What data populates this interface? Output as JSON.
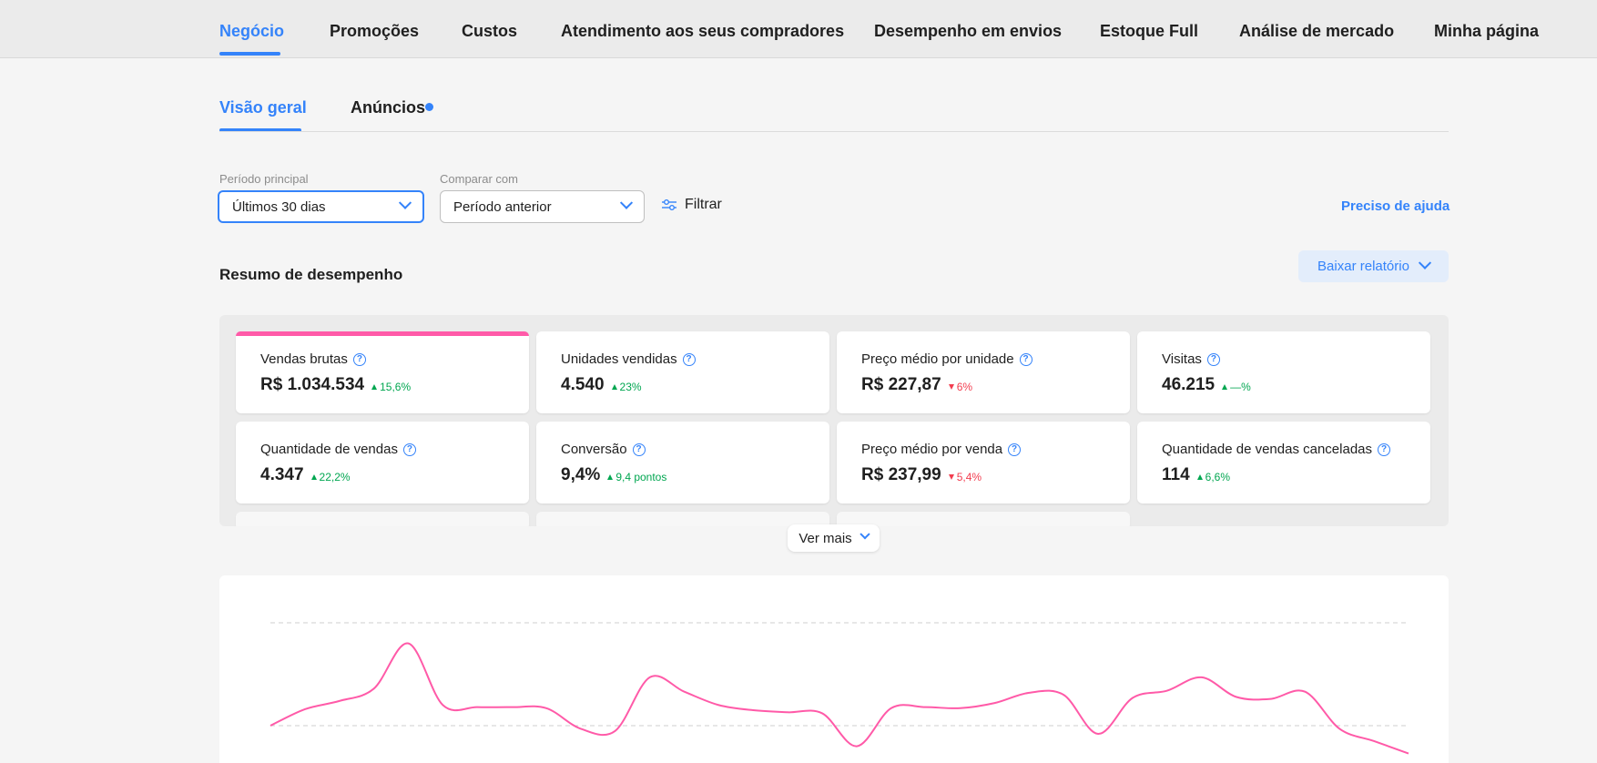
{
  "top_nav": {
    "tabs": [
      "Negócio",
      "Promoções",
      "Custos",
      "Atendimento aos seus compradores",
      "Desempenho em envios",
      "Estoque Full",
      "Análise de mercado",
      "Minha página"
    ],
    "active_index": 0
  },
  "sub_tabs": {
    "tabs": [
      "Visão geral",
      "Anúncios"
    ],
    "active_index": 0
  },
  "filters": {
    "main_period_label": "Período principal",
    "main_period_value": "Últimos 30 dias",
    "compare_label": "Comparar com",
    "compare_value": "Período anterior",
    "filter_label": "Filtrar",
    "help_label": "Preciso de ajuda"
  },
  "summary": {
    "title": "Resumo de desempenho",
    "download_label": "Baixar relatório",
    "see_more_label": "Ver mais",
    "cards": [
      {
        "label": "Vendas brutas",
        "value": "R$ 1.034.534",
        "delta": "15,6%",
        "trend": "up",
        "selected": true
      },
      {
        "label": "Unidades vendidas",
        "value": "4.540",
        "delta": "23%",
        "trend": "up"
      },
      {
        "label": "Preço médio por unidade",
        "value": "R$ 227,87",
        "delta": "6%",
        "trend": "down"
      },
      {
        "label": "Visitas",
        "value": "46.215",
        "delta": "—%",
        "trend": "up"
      },
      {
        "label": "Quantidade de vendas",
        "value": "4.347",
        "delta": "22,2%",
        "trend": "up"
      },
      {
        "label": "Conversão",
        "value": "9,4%",
        "delta": "9,4 pontos",
        "trend": "up"
      },
      {
        "label": "Preço médio por venda",
        "value": "R$ 237,99",
        "delta": "5,4%",
        "trend": "down"
      },
      {
        "label": "Quantidade de vendas canceladas",
        "value": "114",
        "delta": "6,6%",
        "trend": "up"
      }
    ]
  },
  "colors": {
    "accent": "#3483fa",
    "series": "#ff5aa8",
    "positive": "#00a650",
    "negative": "#f23d4f"
  },
  "chart_data": {
    "type": "line",
    "title": "",
    "series": [
      {
        "values": [
          1.0,
          1.16,
          1.24,
          1.36,
          1.8,
          1.2,
          1.18,
          1.18,
          1.17,
          0.97,
          0.95,
          1.47,
          1.33,
          1.2,
          1.15,
          1.13,
          1.12,
          0.8,
          1.17,
          1.18,
          1.17,
          1.22,
          1.32,
          1.3,
          0.92,
          1.27,
          1.34,
          1.47,
          1.28,
          1.26,
          1.33,
          0.97,
          0.85,
          0.73
        ]
      }
    ],
    "grid": true
  }
}
